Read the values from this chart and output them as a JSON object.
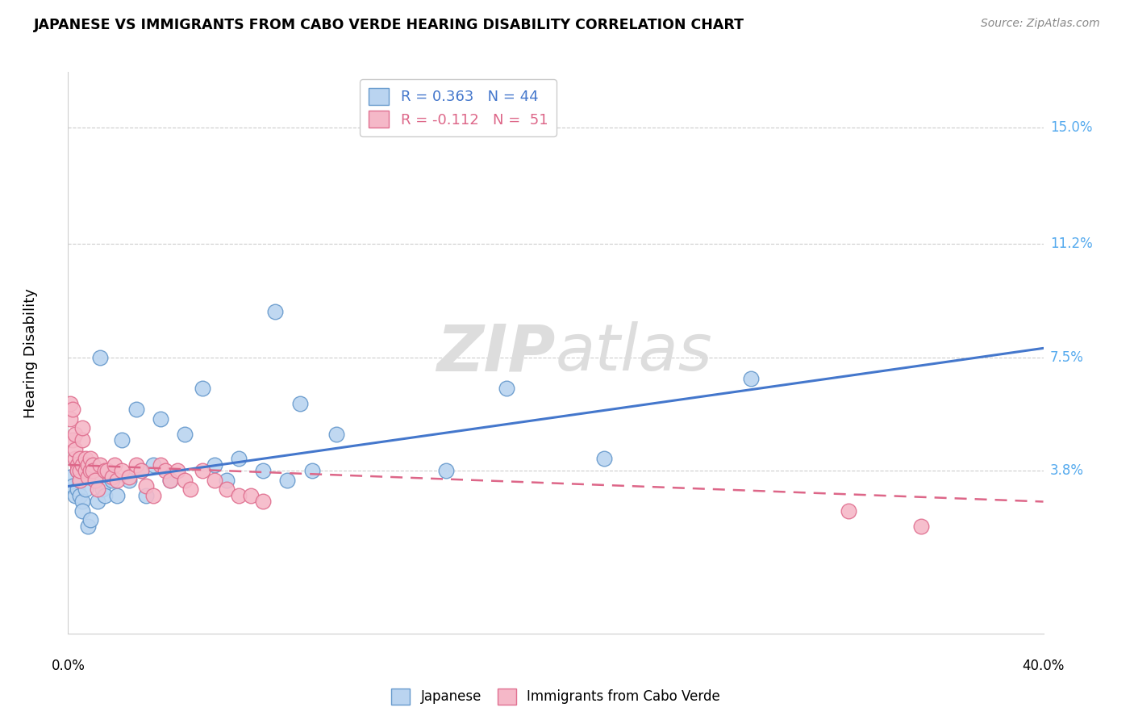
{
  "title": "JAPANESE VS IMMIGRANTS FROM CABO VERDE HEARING DISABILITY CORRELATION CHART",
  "source": "Source: ZipAtlas.com",
  "ylabel": "Hearing Disability",
  "yticks": [
    "15.0%",
    "11.2%",
    "7.5%",
    "3.8%"
  ],
  "ytick_vals": [
    0.15,
    0.112,
    0.075,
    0.038
  ],
  "xmin": 0.0,
  "xmax": 0.4,
  "ymin": -0.015,
  "ymax": 0.168,
  "watermark": "ZIPatlas",
  "blue_scatter_color": "#bad4f0",
  "blue_edge_color": "#6699cc",
  "pink_scatter_color": "#f5b8c8",
  "pink_edge_color": "#e07090",
  "blue_line_color": "#4477cc",
  "pink_line_color": "#dd6688",
  "blue_label_r": "R = 0.363",
  "blue_label_n": "N = 44",
  "pink_label_r": "R = -0.112",
  "pink_label_n": "N =  51",
  "japanese_x": [
    0.001,
    0.002,
    0.003,
    0.004,
    0.004,
    0.005,
    0.005,
    0.006,
    0.006,
    0.007,
    0.008,
    0.009,
    0.01,
    0.011,
    0.012,
    0.013,
    0.014,
    0.015,
    0.016,
    0.018,
    0.02,
    0.022,
    0.025,
    0.028,
    0.03,
    0.032,
    0.035,
    0.038,
    0.042,
    0.048,
    0.055,
    0.06,
    0.065,
    0.07,
    0.08,
    0.085,
    0.09,
    0.095,
    0.1,
    0.11,
    0.155,
    0.18,
    0.22,
    0.28
  ],
  "japanese_y": [
    0.036,
    0.033,
    0.03,
    0.038,
    0.032,
    0.035,
    0.03,
    0.028,
    0.025,
    0.032,
    0.02,
    0.022,
    0.04,
    0.035,
    0.028,
    0.075,
    0.032,
    0.03,
    0.038,
    0.035,
    0.03,
    0.048,
    0.035,
    0.058,
    0.038,
    0.03,
    0.04,
    0.055,
    0.035,
    0.05,
    0.065,
    0.04,
    0.035,
    0.042,
    0.038,
    0.09,
    0.035,
    0.06,
    0.038,
    0.05,
    0.038,
    0.065,
    0.042,
    0.068
  ],
  "caboverde_x": [
    0.001,
    0.001,
    0.002,
    0.002,
    0.003,
    0.003,
    0.003,
    0.004,
    0.004,
    0.005,
    0.005,
    0.005,
    0.006,
    0.006,
    0.006,
    0.007,
    0.007,
    0.008,
    0.008,
    0.009,
    0.009,
    0.01,
    0.01,
    0.011,
    0.012,
    0.013,
    0.015,
    0.016,
    0.018,
    0.019,
    0.02,
    0.022,
    0.025,
    0.028,
    0.03,
    0.032,
    0.035,
    0.038,
    0.04,
    0.042,
    0.045,
    0.048,
    0.05,
    0.055,
    0.06,
    0.065,
    0.07,
    0.075,
    0.08,
    0.32,
    0.35
  ],
  "caboverde_y": [
    0.055,
    0.06,
    0.058,
    0.048,
    0.042,
    0.05,
    0.045,
    0.04,
    0.038,
    0.042,
    0.035,
    0.038,
    0.048,
    0.052,
    0.04,
    0.038,
    0.042,
    0.04,
    0.036,
    0.038,
    0.042,
    0.04,
    0.038,
    0.035,
    0.032,
    0.04,
    0.038,
    0.038,
    0.036,
    0.04,
    0.035,
    0.038,
    0.036,
    0.04,
    0.038,
    0.033,
    0.03,
    0.04,
    0.038,
    0.035,
    0.038,
    0.035,
    0.032,
    0.038,
    0.035,
    0.032,
    0.03,
    0.03,
    0.028,
    0.025,
    0.02
  ],
  "blue_line_x0": 0.0,
  "blue_line_x1": 0.4,
  "blue_line_y0": 0.033,
  "blue_line_y1": 0.078,
  "pink_line_x0": 0.0,
  "pink_line_x1": 0.4,
  "pink_line_y0": 0.04,
  "pink_line_y1": 0.028
}
